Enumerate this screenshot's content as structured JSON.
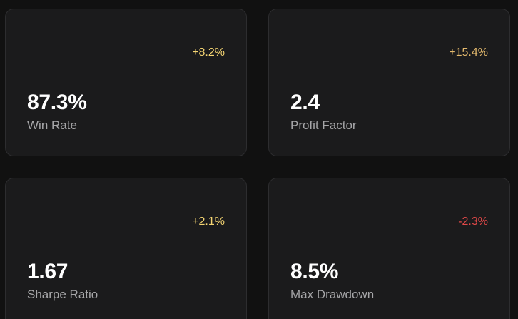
{
  "colors": {
    "background": "#111111",
    "card": "#1b1b1c",
    "positive": "#f5d572",
    "positive_muted": "#e2b86c",
    "negative": "#e04848",
    "value": "#ffffff",
    "label": "#a6a6a8"
  },
  "cards": [
    {
      "value": "87.3%",
      "label": "Win Rate",
      "delta": "+8.2%",
      "trend": "positive",
      "delta_color": "#f5d572"
    },
    {
      "value": "2.4",
      "label": "Profit Factor",
      "delta": "+15.4%",
      "trend": "positive",
      "delta_color": "#e2b86c"
    },
    {
      "value": "1.67",
      "label": "Sharpe Ratio",
      "delta": "+2.1%",
      "trend": "positive",
      "delta_color": "#f5d572"
    },
    {
      "value": "8.5%",
      "label": "Max Drawdown",
      "delta": "-2.3%",
      "trend": "negative",
      "delta_color": "#e04848"
    }
  ]
}
